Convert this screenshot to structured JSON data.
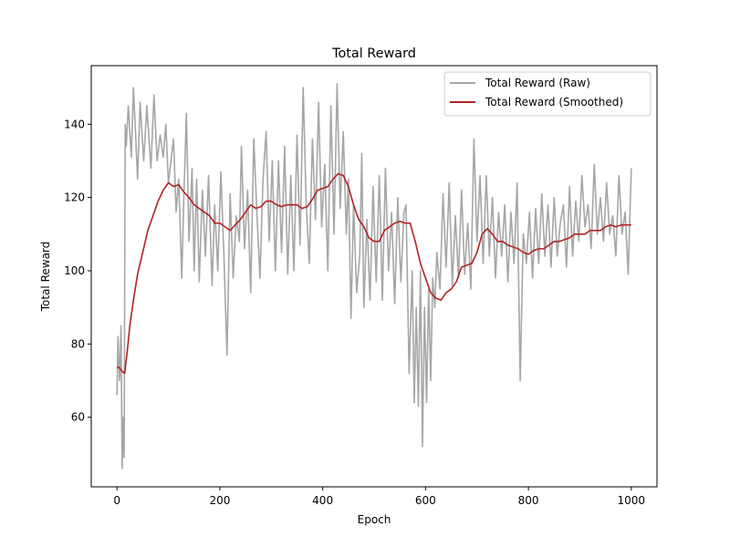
{
  "chart_data": {
    "type": "line",
    "title": "Total Reward",
    "xlabel": "Epoch",
    "ylabel": "Total Reward",
    "xlim": [
      -50,
      1050
    ],
    "ylim": [
      41,
      156
    ],
    "xticks": [
      0,
      200,
      400,
      600,
      800,
      1000
    ],
    "yticks": [
      60,
      80,
      100,
      120,
      140
    ],
    "grid": false,
    "legend": "upper right",
    "series": [
      {
        "name": "Total Reward (Raw)",
        "color": "#a6a6a6",
        "points": [
          [
            0,
            66
          ],
          [
            2,
            82
          ],
          [
            5,
            70
          ],
          [
            8,
            85
          ],
          [
            10,
            46
          ],
          [
            12,
            60
          ],
          [
            14,
            49
          ],
          [
            16,
            140
          ],
          [
            18,
            134
          ],
          [
            22,
            145
          ],
          [
            28,
            131
          ],
          [
            32,
            150
          ],
          [
            36,
            138
          ],
          [
            40,
            125
          ],
          [
            45,
            146
          ],
          [
            52,
            130
          ],
          [
            58,
            145
          ],
          [
            66,
            128
          ],
          [
            72,
            148
          ],
          [
            78,
            130
          ],
          [
            84,
            137
          ],
          [
            90,
            131
          ],
          [
            95,
            140
          ],
          [
            100,
            124
          ],
          [
            105,
            130
          ],
          [
            110,
            136
          ],
          [
            115,
            116
          ],
          [
            120,
            125
          ],
          [
            126,
            98
          ],
          [
            130,
            120
          ],
          [
            135,
            143
          ],
          [
            140,
            108
          ],
          [
            146,
            128
          ],
          [
            150,
            100
          ],
          [
            155,
            125
          ],
          [
            160,
            97
          ],
          [
            166,
            122
          ],
          [
            172,
            104
          ],
          [
            178,
            126
          ],
          [
            185,
            96
          ],
          [
            190,
            118
          ],
          [
            196,
            100
          ],
          [
            202,
            127
          ],
          [
            208,
            104
          ],
          [
            214,
            77
          ],
          [
            220,
            121
          ],
          [
            226,
            98
          ],
          [
            232,
            115
          ],
          [
            238,
            108
          ],
          [
            242,
            134
          ],
          [
            248,
            106
          ],
          [
            254,
            122
          ],
          [
            260,
            94
          ],
          [
            266,
            136
          ],
          [
            272,
            116
          ],
          [
            278,
            98
          ],
          [
            284,
            125
          ],
          [
            290,
            138
          ],
          [
            296,
            108
          ],
          [
            302,
            130
          ],
          [
            308,
            100
          ],
          [
            314,
            130
          ],
          [
            320,
            105
          ],
          [
            326,
            134
          ],
          [
            332,
            99
          ],
          [
            338,
            126
          ],
          [
            344,
            100
          ],
          [
            350,
            137
          ],
          [
            356,
            107
          ],
          [
            362,
            150
          ],
          [
            368,
            118
          ],
          [
            374,
            102
          ],
          [
            380,
            136
          ],
          [
            386,
            114
          ],
          [
            392,
            146
          ],
          [
            398,
            112
          ],
          [
            404,
            129
          ],
          [
            410,
            100
          ],
          [
            416,
            145
          ],
          [
            422,
            110
          ],
          [
            428,
            151
          ],
          [
            434,
            117
          ],
          [
            440,
            138
          ],
          [
            446,
            110
          ],
          [
            450,
            125
          ],
          [
            455,
            87
          ],
          [
            460,
            118
          ],
          [
            466,
            94
          ],
          [
            472,
            104
          ],
          [
            476,
            132
          ],
          [
            480,
            90
          ],
          [
            486,
            114
          ],
          [
            492,
            92
          ],
          [
            498,
            123
          ],
          [
            504,
            97
          ],
          [
            510,
            126
          ],
          [
            516,
            92
          ],
          [
            522,
            128
          ],
          [
            528,
            100
          ],
          [
            534,
            116
          ],
          [
            540,
            91
          ],
          [
            546,
            120
          ],
          [
            552,
            97
          ],
          [
            558,
            116
          ],
          [
            562,
            118
          ],
          [
            568,
            72
          ],
          [
            574,
            100
          ],
          [
            578,
            64
          ],
          [
            582,
            90
          ],
          [
            586,
            63
          ],
          [
            590,
            100
          ],
          [
            594,
            52
          ],
          [
            598,
            90
          ],
          [
            602,
            64
          ],
          [
            606,
            95
          ],
          [
            610,
            70
          ],
          [
            614,
            98
          ],
          [
            618,
            90
          ],
          [
            622,
            105
          ],
          [
            628,
            95
          ],
          [
            634,
            121
          ],
          [
            640,
            101
          ],
          [
            646,
            124
          ],
          [
            652,
            96
          ],
          [
            658,
            115
          ],
          [
            664,
            98
          ],
          [
            670,
            122
          ],
          [
            676,
            99
          ],
          [
            682,
            113
          ],
          [
            688,
            95
          ],
          [
            694,
            136
          ],
          [
            700,
            108
          ],
          [
            706,
            126
          ],
          [
            712,
            102
          ],
          [
            718,
            126
          ],
          [
            724,
            104
          ],
          [
            730,
            120
          ],
          [
            736,
            98
          ],
          [
            742,
            116
          ],
          [
            748,
            104
          ],
          [
            754,
            118
          ],
          [
            760,
            97
          ],
          [
            766,
            116
          ],
          [
            772,
            102
          ],
          [
            778,
            124
          ],
          [
            784,
            70
          ],
          [
            790,
            110
          ],
          [
            796,
            102
          ],
          [
            802,
            116
          ],
          [
            808,
            98
          ],
          [
            814,
            117
          ],
          [
            820,
            102
          ],
          [
            826,
            121
          ],
          [
            832,
            104
          ],
          [
            838,
            118
          ],
          [
            844,
            101
          ],
          [
            850,
            120
          ],
          [
            856,
            104
          ],
          [
            862,
            113
          ],
          [
            868,
            118
          ],
          [
            874,
            101
          ],
          [
            880,
            123
          ],
          [
            886,
            104
          ],
          [
            892,
            119
          ],
          [
            898,
            108
          ],
          [
            904,
            126
          ],
          [
            910,
            112
          ],
          [
            916,
            118
          ],
          [
            922,
            106
          ],
          [
            928,
            129
          ],
          [
            934,
            110
          ],
          [
            940,
            120
          ],
          [
            946,
            108
          ],
          [
            952,
            124
          ],
          [
            958,
            110
          ],
          [
            964,
            115
          ],
          [
            970,
            104
          ],
          [
            976,
            126
          ],
          [
            982,
            110
          ],
          [
            988,
            116
          ],
          [
            994,
            99
          ],
          [
            1000,
            128
          ]
        ]
      },
      {
        "name": "Total Reward (Smoothed)",
        "color": "#b22222",
        "points": [
          [
            0,
            73.7
          ],
          [
            5,
            73.5
          ],
          [
            10,
            72.5
          ],
          [
            15,
            72
          ],
          [
            20,
            78
          ],
          [
            25,
            85
          ],
          [
            32,
            92
          ],
          [
            40,
            99
          ],
          [
            50,
            105
          ],
          [
            60,
            111
          ],
          [
            70,
            115
          ],
          [
            80,
            119
          ],
          [
            90,
            122
          ],
          [
            100,
            124
          ],
          [
            110,
            123
          ],
          [
            120,
            123.5
          ],
          [
            130,
            121.5
          ],
          [
            140,
            120
          ],
          [
            150,
            118
          ],
          [
            160,
            117
          ],
          [
            170,
            116
          ],
          [
            180,
            115
          ],
          [
            190,
            113
          ],
          [
            200,
            113
          ],
          [
            210,
            112
          ],
          [
            220,
            111
          ],
          [
            230,
            112.5
          ],
          [
            240,
            114
          ],
          [
            250,
            116
          ],
          [
            260,
            118
          ],
          [
            270,
            117
          ],
          [
            280,
            117.5
          ],
          [
            290,
            119
          ],
          [
            300,
            119
          ],
          [
            310,
            118
          ],
          [
            320,
            117.5
          ],
          [
            330,
            118
          ],
          [
            340,
            118
          ],
          [
            350,
            118
          ],
          [
            360,
            117
          ],
          [
            370,
            117.5
          ],
          [
            380,
            119.5
          ],
          [
            390,
            122
          ],
          [
            400,
            122.5
          ],
          [
            410,
            123
          ],
          [
            420,
            125
          ],
          [
            430,
            126.5
          ],
          [
            440,
            126
          ],
          [
            450,
            123
          ],
          [
            460,
            118
          ],
          [
            470,
            114
          ],
          [
            480,
            112
          ],
          [
            490,
            109
          ],
          [
            500,
            108
          ],
          [
            510,
            108
          ],
          [
            520,
            111
          ],
          [
            530,
            112
          ],
          [
            540,
            113
          ],
          [
            550,
            113.5
          ],
          [
            560,
            113
          ],
          [
            570,
            113
          ],
          [
            580,
            108
          ],
          [
            590,
            102
          ],
          [
            600,
            98
          ],
          [
            610,
            94
          ],
          [
            620,
            92.5
          ],
          [
            630,
            92
          ],
          [
            640,
            94
          ],
          [
            650,
            95
          ],
          [
            660,
            97
          ],
          [
            670,
            101
          ],
          [
            680,
            101.5
          ],
          [
            690,
            102
          ],
          [
            700,
            105
          ],
          [
            710,
            110
          ],
          [
            720,
            111.5
          ],
          [
            730,
            110
          ],
          [
            740,
            108
          ],
          [
            750,
            108
          ],
          [
            760,
            107
          ],
          [
            770,
            106.5
          ],
          [
            780,
            106
          ],
          [
            790,
            105
          ],
          [
            800,
            104.5
          ],
          [
            810,
            105.5
          ],
          [
            820,
            106
          ],
          [
            830,
            106
          ],
          [
            840,
            107
          ],
          [
            850,
            108
          ],
          [
            860,
            108
          ],
          [
            870,
            108.5
          ],
          [
            880,
            109
          ],
          [
            890,
            110
          ],
          [
            900,
            110
          ],
          [
            910,
            110
          ],
          [
            920,
            111
          ],
          [
            930,
            111
          ],
          [
            940,
            111
          ],
          [
            950,
            112
          ],
          [
            960,
            112.5
          ],
          [
            970,
            112
          ],
          [
            980,
            112.5
          ],
          [
            990,
            112.5
          ],
          [
            1000,
            112.5
          ]
        ]
      }
    ]
  }
}
